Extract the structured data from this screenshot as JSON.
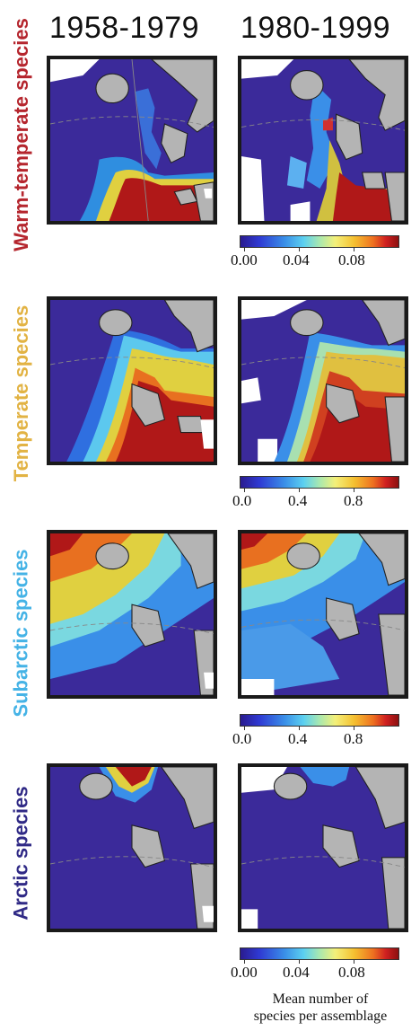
{
  "columns": [
    "1958-1979",
    "1980-1999"
  ],
  "rows": [
    {
      "label": "Warm-temperate species",
      "color": "#b5262e",
      "scale": [
        "0.00",
        "0.04",
        "0.08"
      ]
    },
    {
      "label": "Temperate species",
      "color": "#e2b344",
      "scale": [
        "0.0",
        "0.4",
        "0.8"
      ]
    },
    {
      "label": "Subarctic species",
      "color": "#45b3e6",
      "scale": [
        "0.0",
        "0.4",
        "0.8"
      ]
    },
    {
      "label": "Arctic species",
      "color": "#302a86",
      "scale": [
        "0.00",
        "0.04",
        "0.08"
      ]
    }
  ],
  "caption_line1": "Mean number of",
  "caption_line2": "species per assemblage",
  "palette": {
    "low": "#2a1b8f",
    "mid": "#5cd0f0",
    "high": "#8c1010",
    "land": "#b4b4b4"
  }
}
